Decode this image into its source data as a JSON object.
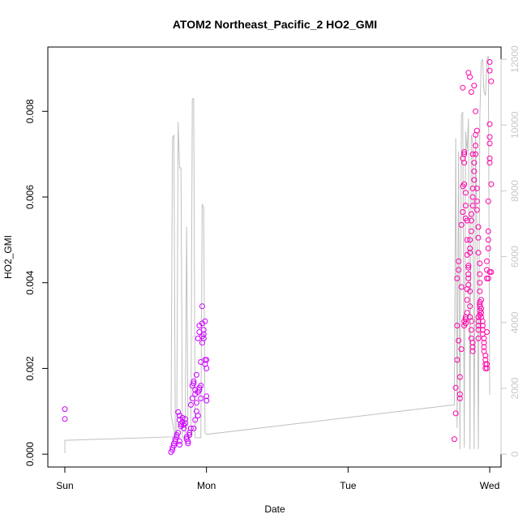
{
  "chart_data": {
    "type": "scatter",
    "title": "ATOM2 Northeast_Pacific_2 HO2_GMI",
    "xlabel": "Date",
    "ylabel": "HO2_GMI",
    "x_ticks": [
      "Sun",
      "Mon",
      "Tue",
      "Wed"
    ],
    "x_tick_values": [
      0,
      1,
      2,
      3
    ],
    "xlim": [
      -0.12,
      3.08
    ],
    "ylim": [
      -0.0003,
      0.0095
    ],
    "y_ticks": [
      0.0,
      0.002,
      0.004,
      0.006,
      0.008
    ],
    "y_tick_labels": [
      "0.000",
      "0.002",
      "0.004",
      "0.006",
      "0.008"
    ],
    "y2_ticks": [
      0,
      2000,
      4000,
      6000,
      8000,
      10000,
      12000
    ],
    "y2_tick_labels": [
      "0",
      "2000",
      "4000",
      "6000",
      "8000",
      "10000",
      "12000"
    ],
    "y2lim": [
      -390,
      12370
    ],
    "grid": false,
    "colors": {
      "points_day1": "#cc00ff",
      "points_day3": "#ff00aa",
      "line": "#c0c0c0",
      "axis": "#000000",
      "right_axis": "#c8c8c8"
    },
    "series": [
      {
        "values": [
          [
            0.0,
            0.00105
          ],
          [
            0.0,
            0.00082
          ],
          [
            0.75,
            5e-05
          ],
          [
            0.76,
            0.0001
          ],
          [
            0.76,
            0.00015
          ],
          [
            0.77,
            0.0002
          ],
          [
            0.77,
            0.00025
          ],
          [
            0.78,
            0.0003
          ],
          [
            0.78,
            0.00035
          ],
          [
            0.79,
            0.0004
          ],
          [
            0.79,
            0.00045
          ],
          [
            0.8,
            0.0005
          ],
          [
            0.81,
            0.00022
          ],
          [
            0.81,
            0.0003
          ],
          [
            0.8,
            0.00098
          ],
          [
            0.81,
            0.0009
          ],
          [
            0.81,
            0.0008
          ],
          [
            0.82,
            0.0007
          ],
          [
            0.82,
            0.00065
          ],
          [
            0.83,
            0.00075
          ],
          [
            0.83,
            0.00085
          ],
          [
            0.84,
            0.00068
          ],
          [
            0.84,
            0.0006
          ],
          [
            0.85,
            0.00072
          ],
          [
            0.85,
            0.00082
          ],
          [
            0.86,
            0.0004
          ],
          [
            0.86,
            0.00035
          ],
          [
            0.87,
            0.00025
          ],
          [
            0.87,
            0.0003
          ],
          [
            0.88,
            0.00045
          ],
          [
            0.88,
            0.0005
          ],
          [
            0.89,
            0.0006
          ],
          [
            0.89,
            0.00115
          ],
          [
            0.9,
            0.0013
          ],
          [
            0.9,
            0.0016
          ],
          [
            0.91,
            0.00165
          ],
          [
            0.91,
            0.0017
          ],
          [
            0.92,
            0.0015
          ],
          [
            0.92,
            0.0014
          ],
          [
            0.93,
            0.0012
          ],
          [
            0.93,
            0.001
          ],
          [
            0.94,
            0.0009
          ],
          [
            0.92,
            0.0008
          ],
          [
            0.91,
            0.0006
          ],
          [
            0.94,
            0.00145
          ],
          [
            0.95,
            0.0015
          ],
          [
            0.95,
            0.00155
          ],
          [
            0.96,
            0.0016
          ],
          [
            0.93,
            0.00185
          ],
          [
            0.94,
            0.0027
          ],
          [
            0.95,
            0.00285
          ],
          [
            0.95,
            0.003
          ],
          [
            0.96,
            0.00215
          ],
          [
            0.96,
            0.0013
          ],
          [
            0.97,
            0.00275
          ],
          [
            0.97,
            0.0026
          ],
          [
            0.98,
            0.0027
          ],
          [
            0.98,
            0.0028
          ],
          [
            0.98,
            0.0029
          ],
          [
            0.97,
            0.00305
          ],
          [
            0.97,
            0.00345
          ],
          [
            0.99,
            0.0031
          ],
          [
            0.99,
            0.0022
          ],
          [
            0.99,
            0.0021
          ],
          [
            1.0,
            0.002
          ],
          [
            1.0,
            0.0022
          ],
          [
            1.0,
            0.00125
          ],
          [
            1.0,
            0.00135
          ]
        ]
      },
      {
        "values": [
          [
            2.75,
            0.00035
          ],
          [
            2.76,
            0.00095
          ],
          [
            2.76,
            0.00155
          ],
          [
            2.77,
            0.0022
          ],
          [
            2.77,
            0.003
          ],
          [
            2.77,
            0.0041
          ],
          [
            2.78,
            0.0045
          ],
          [
            2.78,
            0.0043
          ],
          [
            2.78,
            0.00265
          ],
          [
            2.79,
            0.0018
          ],
          [
            2.79,
            0.0014
          ],
          [
            2.79,
            0.0013
          ],
          [
            2.8,
            0.00245
          ],
          [
            2.8,
            0.0039
          ],
          [
            2.8,
            0.00535
          ],
          [
            2.81,
            0.00565
          ],
          [
            2.81,
            0.00625
          ],
          [
            2.81,
            0.0069
          ],
          [
            2.82,
            0.00705
          ],
          [
            2.82,
            0.007
          ],
          [
            2.82,
            0.0068
          ],
          [
            2.82,
            0.0063
          ],
          [
            2.83,
            0.0061
          ],
          [
            2.83,
            0.0058
          ],
          [
            2.83,
            0.0055
          ],
          [
            2.84,
            0.00545
          ],
          [
            2.84,
            0.005
          ],
          [
            2.84,
            0.00465
          ],
          [
            2.85,
            0.0044
          ],
          [
            2.85,
            0.0042
          ],
          [
            2.85,
            0.00395
          ],
          [
            2.86,
            0.0038
          ],
          [
            2.86,
            0.00345
          ],
          [
            2.86,
            0.0032
          ],
          [
            2.87,
            0.0031
          ],
          [
            2.87,
            0.0029
          ],
          [
            2.87,
            0.0027
          ],
          [
            2.88,
            0.0026
          ],
          [
            2.88,
            0.0025
          ],
          [
            2.88,
            0.0024
          ],
          [
            2.82,
            0.003
          ],
          [
            2.82,
            0.0031
          ],
          [
            2.83,
            0.00315
          ],
          [
            2.83,
            0.00305
          ],
          [
            2.83,
            0.0032
          ],
          [
            2.84,
            0.0033
          ],
          [
            2.84,
            0.0036
          ],
          [
            2.84,
            0.00385
          ],
          [
            2.85,
            0.0041
          ],
          [
            2.85,
            0.00435
          ],
          [
            2.86,
            0.0047
          ],
          [
            2.86,
            0.0048
          ],
          [
            2.86,
            0.005
          ],
          [
            2.87,
            0.0052
          ],
          [
            2.87,
            0.00545
          ],
          [
            2.87,
            0.0056
          ],
          [
            2.88,
            0.0058
          ],
          [
            2.88,
            0.006
          ],
          [
            2.88,
            0.0062
          ],
          [
            2.89,
            0.0064
          ],
          [
            2.89,
            0.0066
          ],
          [
            2.89,
            0.0068
          ],
          [
            2.9,
            0.007
          ],
          [
            2.9,
            0.0072
          ],
          [
            2.9,
            0.00745
          ],
          [
            2.91,
            0.00755
          ],
          [
            2.91,
            0.0062
          ],
          [
            2.91,
            0.0059
          ],
          [
            2.91,
            0.0057
          ],
          [
            2.92,
            0.0053
          ],
          [
            2.92,
            0.00505
          ],
          [
            2.92,
            0.0047
          ],
          [
            2.93,
            0.00445
          ],
          [
            2.93,
            0.0042
          ],
          [
            2.93,
            0.004
          ],
          [
            2.93,
            0.0038
          ],
          [
            2.94,
            0.0036
          ],
          [
            2.94,
            0.0034
          ],
          [
            2.94,
            0.0033
          ],
          [
            2.94,
            0.0032
          ],
          [
            2.95,
            0.0031
          ],
          [
            2.95,
            0.003
          ],
          [
            2.95,
            0.0029
          ],
          [
            2.95,
            0.0028
          ],
          [
            2.96,
            0.0027
          ],
          [
            2.96,
            0.0026
          ],
          [
            2.96,
            0.0025
          ],
          [
            2.96,
            0.0024
          ],
          [
            2.97,
            0.0023
          ],
          [
            2.97,
            0.0022
          ],
          [
            2.97,
            0.0021
          ],
          [
            2.97,
            0.002
          ],
          [
            2.98,
            0.002
          ],
          [
            2.98,
            0.0021
          ],
          [
            2.98,
            0.00285
          ],
          [
            2.93,
            0.00325
          ],
          [
            2.93,
            0.00335
          ],
          [
            2.93,
            0.00345
          ],
          [
            2.93,
            0.0035
          ],
          [
            2.93,
            0.00355
          ],
          [
            2.92,
            0.0032
          ],
          [
            2.92,
            0.0031
          ],
          [
            2.92,
            0.003
          ],
          [
            2.92,
            0.0029
          ],
          [
            2.92,
            0.0027
          ],
          [
            2.98,
            0.0041
          ],
          [
            2.98,
            0.0043
          ],
          [
            2.98,
            0.0045
          ],
          [
            2.99,
            0.0048
          ],
          [
            2.99,
            0.0052
          ],
          [
            2.99,
            0.005
          ],
          [
            2.99,
            0.0059
          ],
          [
            3.0,
            0.0068
          ],
          [
            3.0,
            0.0069
          ],
          [
            3.0,
            0.0074
          ],
          [
            3.0,
            0.0077
          ],
          [
            3.0,
            0.00725
          ],
          [
            3.01,
            0.0063
          ],
          [
            3.01,
            0.0087
          ],
          [
            3.0,
            0.00895
          ],
          [
            3.0,
            0.00915
          ],
          [
            3.01,
            0.00425
          ],
          [
            3.0,
            0.00425
          ],
          [
            2.99,
            0.0041
          ],
          [
            2.85,
            0.0089
          ],
          [
            2.86,
            0.0088
          ],
          [
            2.87,
            0.00845
          ],
          [
            2.88,
            0.007
          ],
          [
            2.81,
            0.00855
          ],
          [
            2.89,
            0.0086
          ],
          [
            2.9,
            0.008
          ]
        ]
      }
    ],
    "line_secondary_axis": [
      [
        0.0,
        30
      ],
      [
        0.0,
        420
      ],
      [
        0.78,
        530
      ],
      [
        0.75,
        1200
      ],
      [
        0.76,
        9600
      ],
      [
        0.77,
        9700
      ],
      [
        0.78,
        500
      ],
      [
        0.79,
        500
      ],
      [
        0.8,
        10100
      ],
      [
        0.81,
        8700
      ],
      [
        0.82,
        8700
      ],
      [
        0.82,
        8650
      ],
      [
        0.83,
        500
      ],
      [
        0.84,
        500
      ],
      [
        0.85,
        500
      ],
      [
        0.86,
        6900
      ],
      [
        0.87,
        500
      ],
      [
        0.88,
        500
      ],
      [
        0.89,
        500
      ],
      [
        0.9,
        10800
      ],
      [
        0.91,
        10800
      ],
      [
        0.92,
        500
      ],
      [
        0.93,
        500
      ],
      [
        0.94,
        500
      ],
      [
        0.95,
        500
      ],
      [
        0.96,
        500
      ],
      [
        0.97,
        7600
      ],
      [
        0.98,
        7500
      ],
      [
        0.99,
        650
      ],
      [
        1.0,
        600
      ],
      [
        2.75,
        1500
      ],
      [
        2.76,
        9600
      ],
      [
        2.77,
        800
      ],
      [
        2.78,
        9200
      ],
      [
        2.79,
        150
      ],
      [
        2.8,
        10300
      ],
      [
        2.81,
        10400
      ],
      [
        2.82,
        200
      ],
      [
        2.83,
        9800
      ],
      [
        2.84,
        9200
      ],
      [
        2.85,
        10200
      ],
      [
        2.86,
        150
      ],
      [
        2.87,
        9700
      ],
      [
        2.88,
        9500
      ],
      [
        2.89,
        150
      ],
      [
        2.9,
        9700
      ],
      [
        2.91,
        6500
      ],
      [
        2.92,
        150
      ],
      [
        2.93,
        10200
      ],
      [
        2.94,
        11900
      ],
      [
        2.95,
        12000
      ],
      [
        2.96,
        11000
      ],
      [
        2.97,
        10900
      ],
      [
        2.98,
        12000
      ],
      [
        2.99,
        12100
      ],
      [
        3.0,
        1800
      ]
    ]
  }
}
